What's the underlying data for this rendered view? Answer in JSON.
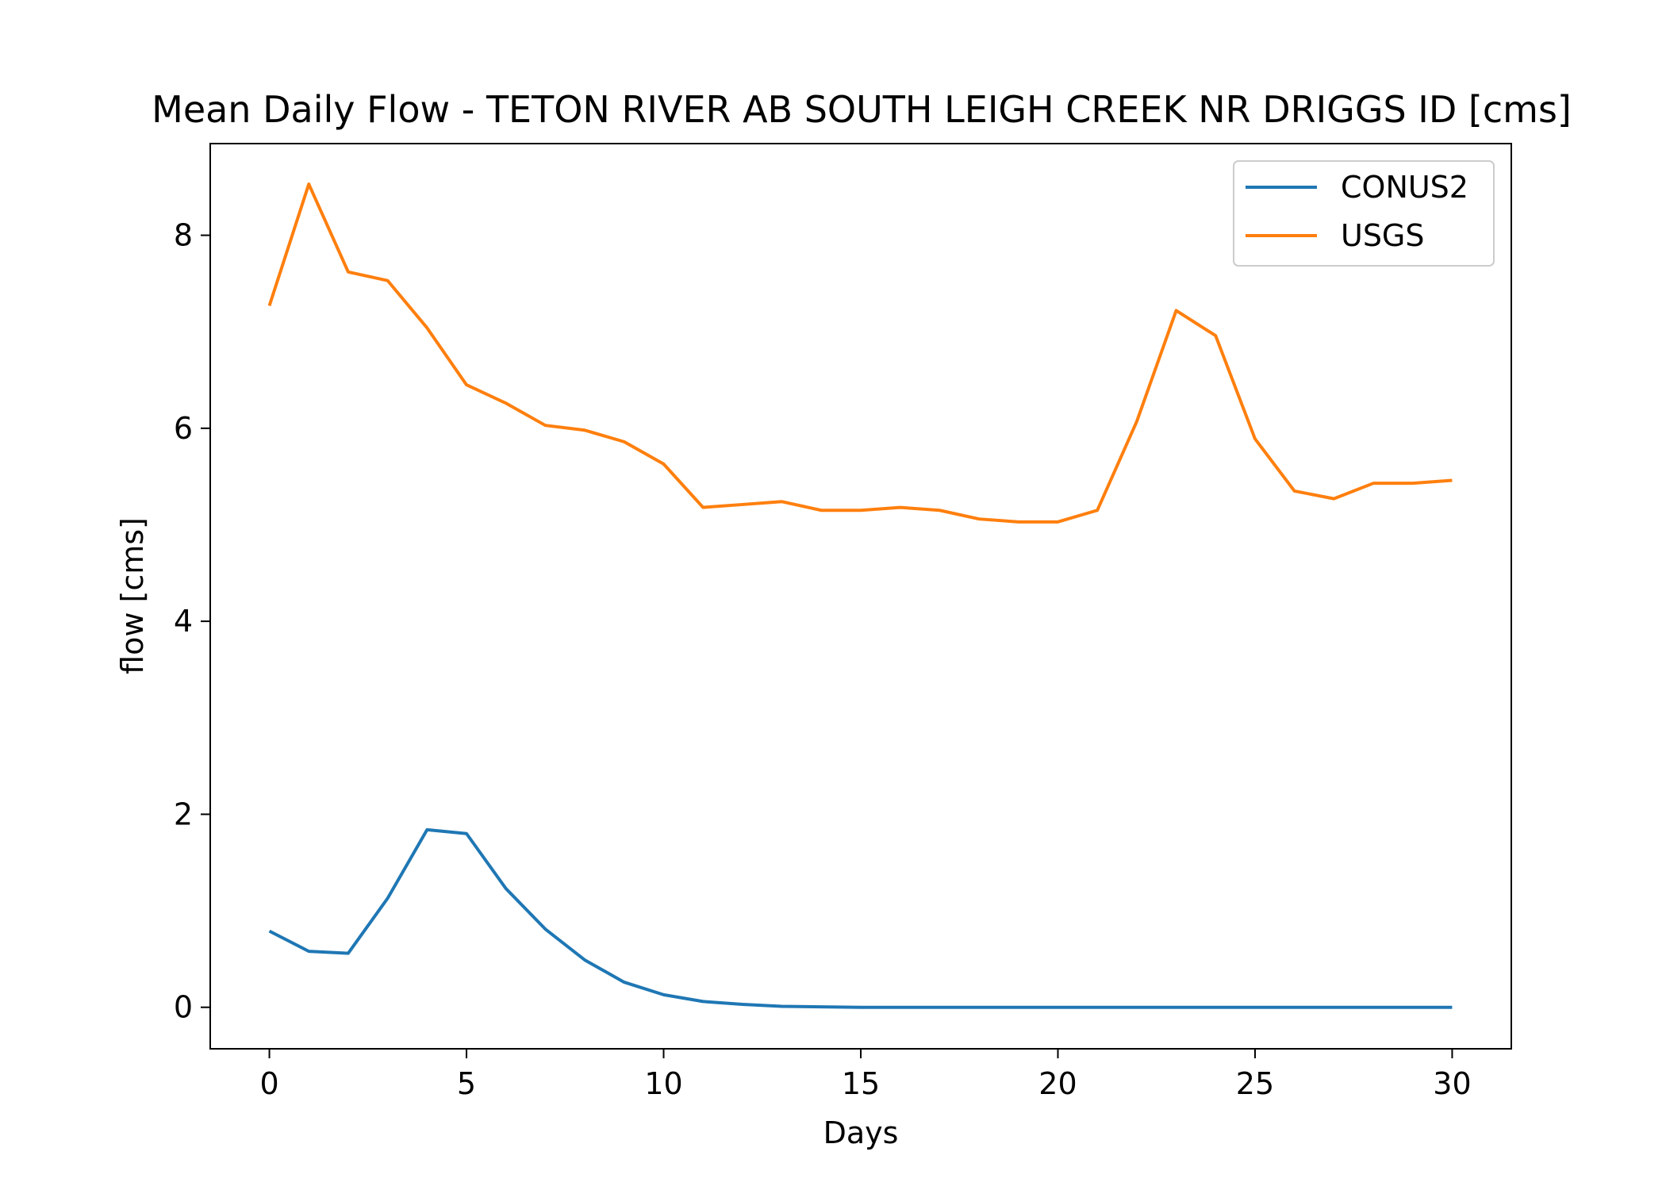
{
  "chart_data": {
    "type": "line",
    "title": "Mean Daily Flow - TETON RIVER AB SOUTH LEIGH CREEK NR DRIGGS ID [cms]",
    "xlabel": "Days",
    "ylabel": "flow [cms]",
    "xlim": [
      -1.5,
      31.5
    ],
    "ylim": [
      -0.43,
      8.95
    ],
    "xticks": [
      0,
      5,
      10,
      15,
      20,
      25,
      30
    ],
    "yticks": [
      0,
      2,
      4,
      6,
      8
    ],
    "grid": false,
    "legend_position": "top-right",
    "x": [
      0,
      1,
      2,
      3,
      4,
      5,
      6,
      7,
      8,
      9,
      10,
      11,
      12,
      13,
      14,
      15,
      16,
      17,
      18,
      19,
      20,
      21,
      22,
      23,
      24,
      25,
      26,
      27,
      28,
      29,
      30
    ],
    "series": [
      {
        "name": "CONUS2",
        "color": "#1f77b4",
        "values": [
          0.79,
          0.58,
          0.56,
          1.13,
          1.84,
          1.8,
          1.23,
          0.81,
          0.49,
          0.26,
          0.13,
          0.06,
          0.03,
          0.01,
          0.005,
          0.0,
          0.0,
          0.0,
          0.0,
          0.0,
          0.0,
          0.0,
          0.0,
          0.0,
          0.0,
          0.0,
          0.0,
          0.0,
          0.0,
          0.0,
          0.0
        ]
      },
      {
        "name": "USGS",
        "color": "#ff7f0e",
        "values": [
          7.27,
          8.53,
          7.62,
          7.53,
          7.04,
          6.45,
          6.26,
          6.03,
          5.98,
          5.86,
          5.63,
          5.18,
          5.21,
          5.24,
          5.15,
          5.15,
          5.18,
          5.15,
          5.06,
          5.03,
          5.03,
          5.15,
          6.07,
          7.22,
          6.96,
          5.89,
          5.35,
          5.27,
          5.43,
          5.43,
          5.46
        ]
      }
    ]
  }
}
